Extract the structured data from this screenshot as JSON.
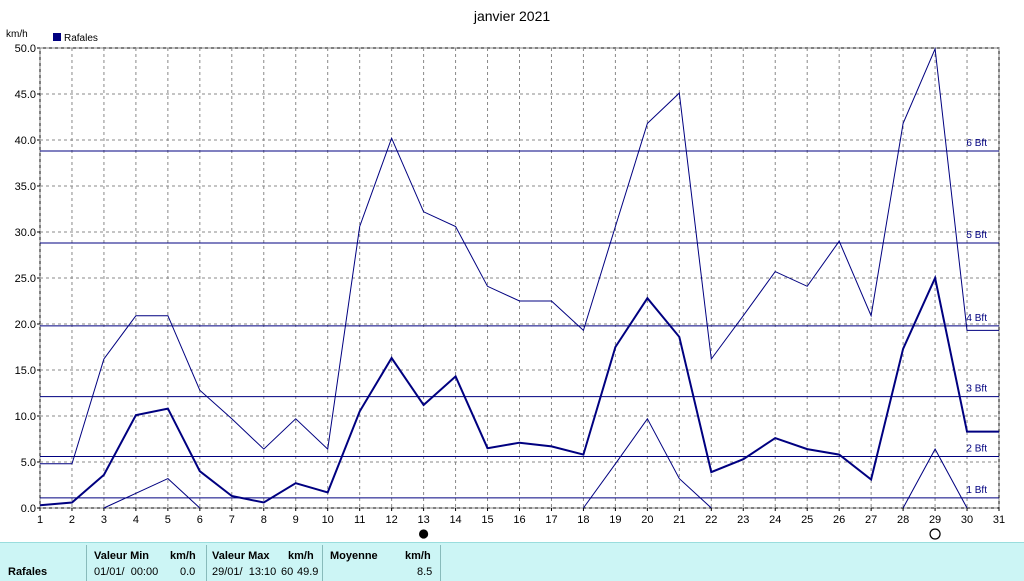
{
  "chart_data": {
    "type": "line",
    "title": "janvier 2021",
    "ylabel": "km/h",
    "ylim": [
      0,
      50
    ],
    "yticks": [
      "0.0",
      "5.0",
      "10.0",
      "15.0",
      "20.0",
      "25.0",
      "30.0",
      "35.0",
      "40.0",
      "45.0",
      "50.0"
    ],
    "x": [
      1,
      2,
      3,
      4,
      5,
      6,
      7,
      8,
      9,
      10,
      11,
      12,
      13,
      14,
      15,
      16,
      17,
      18,
      19,
      20,
      21,
      22,
      23,
      24,
      25,
      26,
      27,
      28,
      29,
      30,
      31
    ],
    "grid": true,
    "legend": {
      "position": "top-left",
      "entries": [
        "Rafales"
      ]
    },
    "series": [
      {
        "name": "Rafales",
        "role": "mean",
        "color": "#000080",
        "values": [
          0.3,
          0.6,
          3.6,
          10.1,
          10.8,
          4.0,
          1.3,
          0.6,
          2.7,
          1.7,
          10.5,
          16.3,
          11.2,
          14.3,
          6.5,
          7.1,
          6.7,
          5.8,
          17.5,
          22.8,
          18.6,
          3.9,
          5.3,
          7.6,
          6.4,
          5.8,
          3.1,
          17.3,
          25.0,
          8.3,
          8.3
        ]
      },
      {
        "role": "max",
        "color": "#000080",
        "values": [
          4.8,
          4.8,
          16.2,
          20.9,
          20.9,
          12.8,
          9.7,
          6.4,
          9.7,
          6.4,
          30.6,
          40.2,
          32.2,
          30.6,
          24.1,
          22.5,
          22.5,
          19.3,
          30.6,
          41.8,
          45.1,
          16.2,
          20.9,
          25.7,
          24.1,
          29.0,
          20.9,
          41.8,
          49.9,
          19.3,
          19.3
        ]
      },
      {
        "role": "min",
        "color": "#000080",
        "x": [
          3,
          4,
          5,
          6,
          18,
          19,
          20,
          21,
          22,
          28,
          29,
          30
        ],
        "values": [
          0,
          1.6,
          3.2,
          0,
          0,
          4.8,
          9.7,
          3.2,
          0,
          0,
          6.4,
          0
        ]
      }
    ],
    "beaufort": [
      {
        "label": "1 Bft",
        "value": 1.1
      },
      {
        "label": "2 Bft",
        "value": 5.6
      },
      {
        "label": "3 Bft",
        "value": 12.1
      },
      {
        "label": "4 Bft",
        "value": 19.8
      },
      {
        "label": "5 Bft",
        "value": 28.8
      },
      {
        "label": "6 Bft",
        "value": 38.8
      }
    ],
    "moon": [
      {
        "day": 13,
        "phase": "new"
      },
      {
        "day": 29,
        "phase": "full"
      }
    ]
  },
  "stats": {
    "row_label": "Rafales",
    "min_header": "Valeur Min",
    "min_unit": "km/h",
    "min_date": "01/01/  00:00",
    "min_value": "0.0",
    "max_header": "Valeur Max",
    "max_unit": "km/h",
    "max_date": "29/01/  13:10",
    "max_extra": "60",
    "max_value": "49.9",
    "avg_header": "Moyenne",
    "avg_unit": "km/h",
    "avg_value": "8.5"
  }
}
